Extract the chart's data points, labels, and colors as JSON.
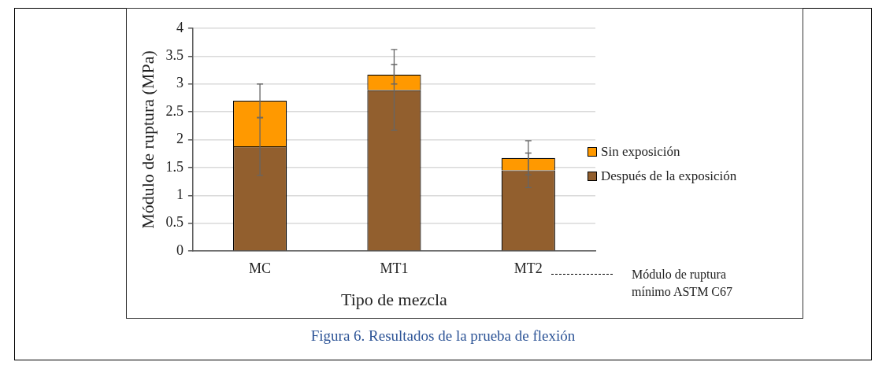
{
  "chart_data": {
    "type": "bar",
    "stacked": true,
    "categories": [
      "MC",
      "MT1",
      "MT2"
    ],
    "xlabel": "Tipo de mezcla",
    "ylabel": "Módulo de ruptura (MPa)",
    "ylim": [
      0,
      4
    ],
    "yticks": [
      0,
      0.5,
      1,
      1.5,
      2,
      2.5,
      3,
      3.5,
      4
    ],
    "grid": "y",
    "legend": "right",
    "annotations": [
      "Figura 6. Resultados de la prueba de flexión"
    ],
    "series": [
      {
        "name": "Después de la exposición",
        "color": "#925f2e",
        "values": [
          1.88,
          2.89,
          1.45
        ],
        "errors": [
          [
            1.36,
            2.39
          ],
          [
            2.17,
            3.62
          ],
          [
            1.14,
            1.76
          ]
        ]
      },
      {
        "name": "Sin exposición",
        "color": "#ff9900",
        "values": [
          0.82,
          0.28,
          0.22
        ],
        "errors": [
          [
            2.4,
            3.0
          ],
          [
            3.0,
            3.35
          ],
          [
            1.37,
            1.98
          ]
        ]
      },
      {
        "type": "line",
        "name": "Módulo de ruptura mínimo ASTM C67",
        "color": "#000000",
        "line_style": "dashed",
        "values": [
          null,
          null,
          null
        ]
      }
    ]
  }
}
